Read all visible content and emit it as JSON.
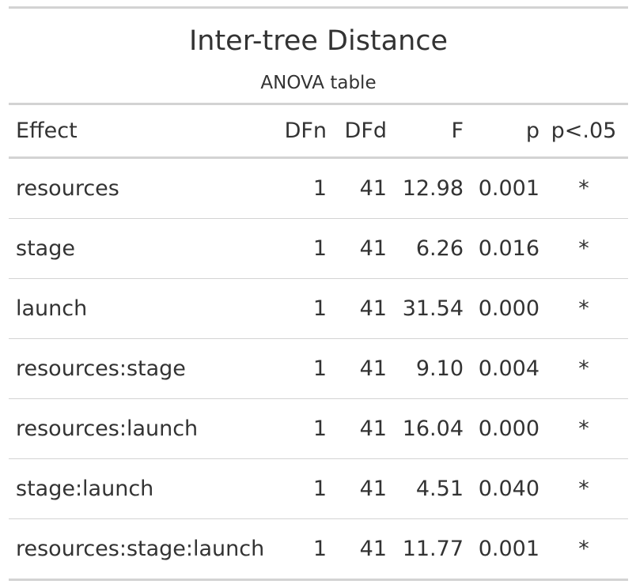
{
  "table": {
    "title": "Inter-tree Distance",
    "subtitle": "ANOVA table",
    "columns": {
      "effect": "Effect",
      "dfn": "DFn",
      "dfd": "DFd",
      "f": "F",
      "p": "p",
      "sig": "p<.05"
    },
    "rows": [
      {
        "effect": "resources",
        "dfn": "1",
        "dfd": "41",
        "f": "12.98",
        "p": "0.001",
        "sig": "*"
      },
      {
        "effect": "stage",
        "dfn": "1",
        "dfd": "41",
        "f": "6.26",
        "p": "0.016",
        "sig": "*"
      },
      {
        "effect": "launch",
        "dfn": "1",
        "dfd": "41",
        "f": "31.54",
        "p": "0.000",
        "sig": "*"
      },
      {
        "effect": "resources:stage",
        "dfn": "1",
        "dfd": "41",
        "f": "9.10",
        "p": "0.004",
        "sig": "*"
      },
      {
        "effect": "resources:launch",
        "dfn": "1",
        "dfd": "41",
        "f": "16.04",
        "p": "0.000",
        "sig": "*"
      },
      {
        "effect": "stage:launch",
        "dfn": "1",
        "dfd": "41",
        "f": "4.51",
        "p": "0.040",
        "sig": "*"
      },
      {
        "effect": "resources:stage:launch",
        "dfn": "1",
        "dfd": "41",
        "f": "11.77",
        "p": "0.001",
        "sig": "*"
      }
    ]
  }
}
